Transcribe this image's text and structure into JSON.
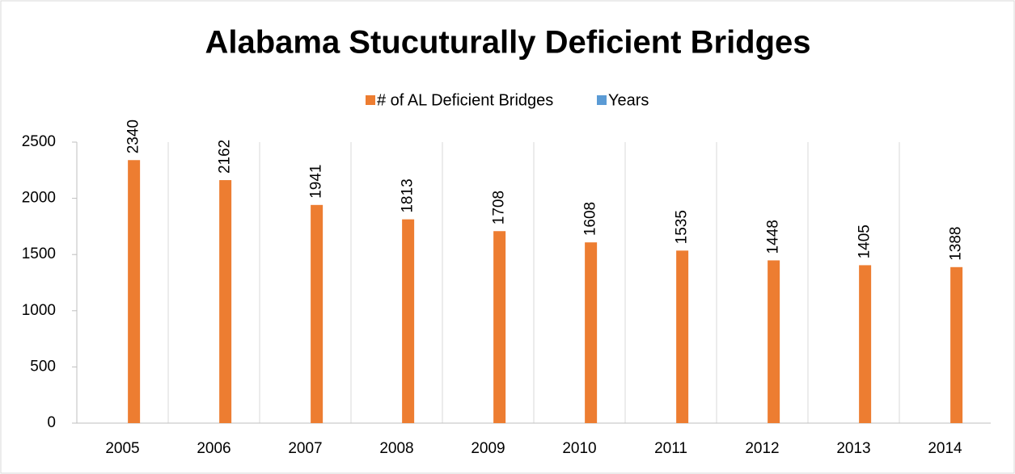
{
  "chart_data": {
    "type": "bar",
    "title": "Alabama Stucuturally Deficient Bridges",
    "categories": [
      "2005",
      "2006",
      "2007",
      "2008",
      "2009",
      "2010",
      "2011",
      "2012",
      "2013",
      "2014"
    ],
    "series": [
      {
        "name": "# of AL Deficient Bridges",
        "color": "#ed7d31",
        "values": [
          2340,
          2162,
          1941,
          1813,
          1708,
          1608,
          1535,
          1448,
          1405,
          1388
        ]
      },
      {
        "name": "Years",
        "color": "#5b9bd5",
        "values": [
          null,
          null,
          null,
          null,
          null,
          null,
          null,
          null,
          null,
          null
        ]
      }
    ],
    "ylim": [
      0,
      2500
    ],
    "yticks": [
      0,
      500,
      1000,
      1500,
      2000,
      2500
    ],
    "grid": false,
    "legend": "top"
  }
}
